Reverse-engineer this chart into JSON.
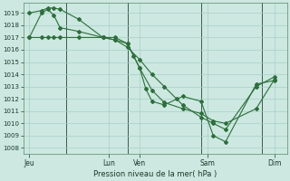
{
  "background_color": "#cce8e0",
  "grid_color": "#a8cfc8",
  "line_color": "#2d6e3c",
  "title": "Pression niveau de la mer( hPa )",
  "xlabel_ticks": [
    "Jeu",
    "Lun",
    "Ven",
    "Sam",
    "Dim"
  ],
  "xlabel_tick_positions": [
    0.5,
    7.0,
    9.5,
    15.0,
    20.5
  ],
  "ylim": [
    1007.5,
    1019.8
  ],
  "yticks": [
    1008,
    1009,
    1010,
    1011,
    1012,
    1013,
    1014,
    1015,
    1016,
    1017,
    1018,
    1019
  ],
  "vlines_x": [
    3.5,
    8.5,
    14.5,
    19.5
  ],
  "series1_x": [
    0.5,
    1.5,
    2.0,
    2.5,
    3.0,
    4.5,
    6.5,
    7.5,
    8.5,
    9.5,
    10.0,
    10.5,
    11.5,
    13.0,
    14.5,
    15.5,
    16.5,
    19.0,
    20.5
  ],
  "series1_y": [
    1019.0,
    1019.2,
    1019.4,
    1019.4,
    1019.3,
    1018.5,
    1017.0,
    1016.8,
    1016.5,
    1014.5,
    1012.8,
    1011.8,
    1011.5,
    1012.2,
    1011.8,
    1009.0,
    1008.5,
    1013.2,
    1013.5
  ],
  "series2_x": [
    0.5,
    1.5,
    2.0,
    2.5,
    3.0,
    4.5,
    6.5,
    7.5,
    8.5,
    9.0,
    9.5,
    10.5,
    11.5,
    13.0,
    14.5,
    15.5,
    16.5,
    19.0,
    20.5
  ],
  "series2_y": [
    1017.0,
    1019.0,
    1019.3,
    1018.8,
    1017.8,
    1017.5,
    1017.0,
    1017.0,
    1016.5,
    1015.5,
    1014.5,
    1012.7,
    1011.7,
    1011.2,
    1010.8,
    1010.2,
    1010.0,
    1011.2,
    1013.6
  ],
  "series3_x": [
    0.5,
    1.5,
    2.0,
    2.5,
    3.0,
    4.5,
    6.5,
    7.5,
    8.5,
    9.5,
    10.5,
    11.5,
    12.5,
    13.0,
    14.5,
    15.5,
    16.5,
    19.0,
    20.5
  ],
  "series3_y": [
    1017.0,
    1017.0,
    1017.0,
    1017.0,
    1017.0,
    1017.0,
    1017.0,
    1016.8,
    1016.2,
    1015.2,
    1014.0,
    1013.0,
    1012.0,
    1011.5,
    1010.5,
    1010.0,
    1009.5,
    1013.0,
    1013.8
  ]
}
